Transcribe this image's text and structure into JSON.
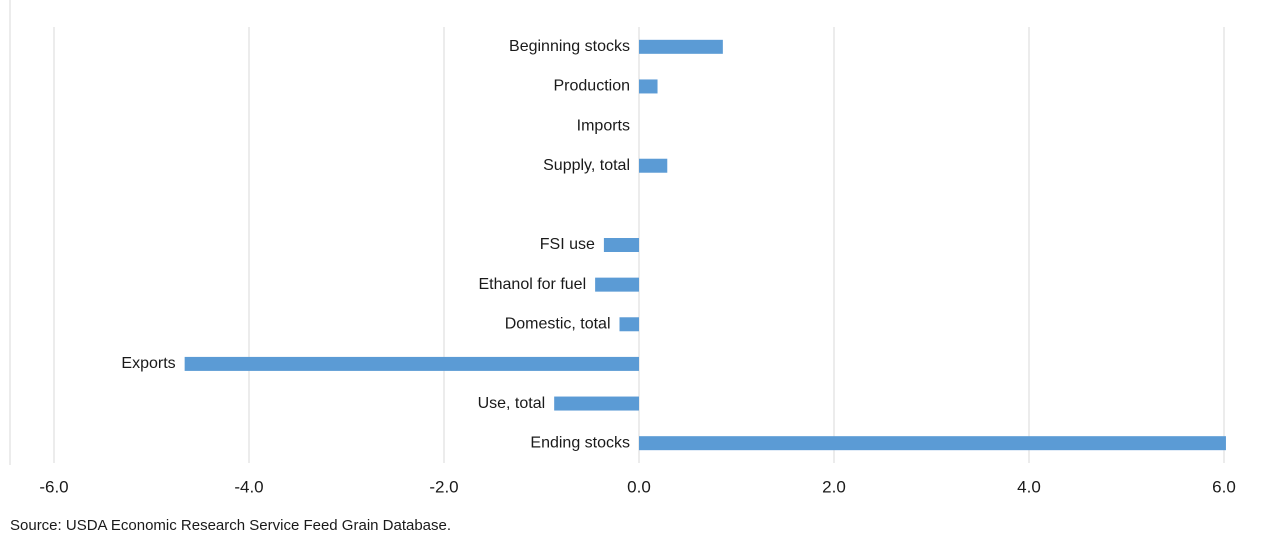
{
  "chart_data": {
    "type": "hbar",
    "categories": [
      "Beginning stocks",
      "Production",
      "Imports",
      "Supply, total",
      null,
      "FSI use",
      "Ethanol for fuel",
      "Domestic, total",
      "Exports",
      "Use, total",
      "Ending stocks"
    ],
    "values": [
      0.86,
      0.19,
      0,
      0.29,
      null,
      -0.36,
      -0.45,
      -0.2,
      -4.66,
      -0.87,
      6.02
    ],
    "color": "#5b9bd5",
    "xlim": [
      -6,
      6
    ],
    "xticks": [
      {
        "value": -6,
        "label": "-6.0"
      },
      {
        "value": -4,
        "label": "-4.0"
      },
      {
        "value": -2,
        "label": "-2.0"
      },
      {
        "value": 0,
        "label": "0.0"
      },
      {
        "value": 2,
        "label": "2.0"
      },
      {
        "value": 4,
        "label": "4.0"
      },
      {
        "value": 6,
        "label": "6.0"
      }
    ],
    "grid": true,
    "source": "Source: USDA Economic Research Service Feed Grain Database."
  }
}
